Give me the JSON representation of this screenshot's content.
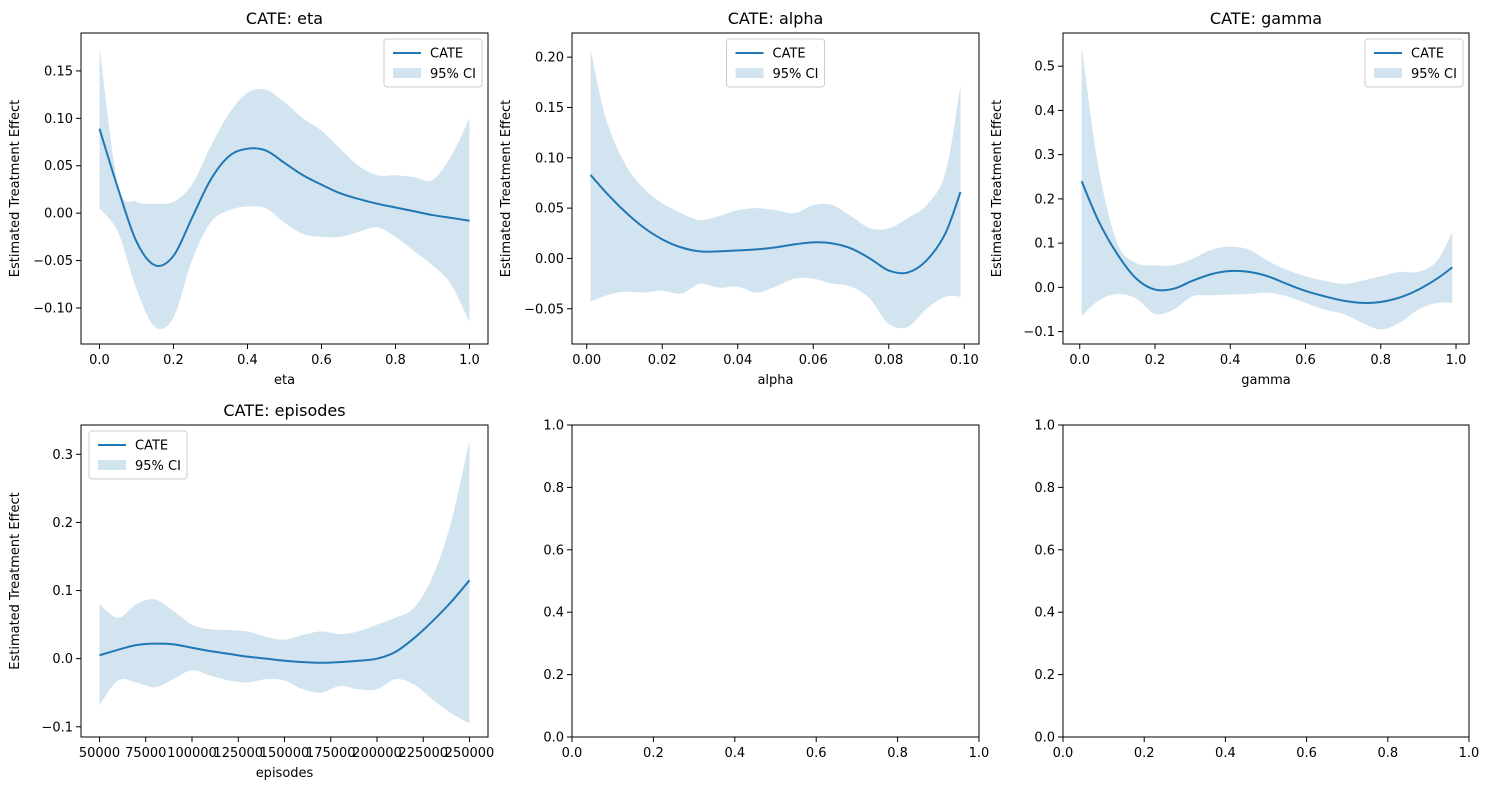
{
  "figure": {
    "background": "#ffffff"
  },
  "colors": {
    "line": "#1f77b4",
    "band": "#1f77b4",
    "band_opacity": 0.2
  },
  "chart_data": [
    {
      "type": "line",
      "title": "CATE: eta",
      "xlabel": "eta",
      "ylabel": "Estimated Treatment Effect",
      "xlim": [
        -0.05,
        1.05
      ],
      "ylim": [
        -0.138,
        0.19
      ],
      "xticks": [
        0.0,
        0.2,
        0.4,
        0.6,
        0.8,
        1.0
      ],
      "xtick_labels": [
        "0.0",
        "0.2",
        "0.4",
        "0.6",
        "0.8",
        "1.0"
      ],
      "yticks": [
        -0.1,
        -0.05,
        0.0,
        0.05,
        0.1,
        0.15
      ],
      "ytick_labels": [
        "−0.10",
        "−0.05",
        "0.00",
        "0.05",
        "0.10",
        "0.15"
      ],
      "legend": {
        "position": "upper right",
        "entries": [
          "CATE",
          "95% CI"
        ]
      },
      "x": [
        0.0,
        0.05,
        0.1,
        0.15,
        0.2,
        0.25,
        0.3,
        0.35,
        0.4,
        0.45,
        0.5,
        0.55,
        0.6,
        0.65,
        0.7,
        0.75,
        0.8,
        0.85,
        0.9,
        0.95,
        1.0
      ],
      "y": [
        0.089,
        0.026,
        -0.03,
        -0.055,
        -0.045,
        -0.005,
        0.035,
        0.06,
        0.068,
        0.066,
        0.053,
        0.04,
        0.03,
        0.021,
        0.015,
        0.01,
        0.006,
        0.002,
        -0.002,
        -0.005,
        -0.008
      ],
      "ci_lower": [
        0.005,
        -0.02,
        -0.08,
        -0.12,
        -0.11,
        -0.05,
        -0.01,
        0.003,
        0.007,
        0.005,
        -0.01,
        -0.022,
        -0.025,
        -0.025,
        -0.02,
        -0.015,
        -0.025,
        -0.04,
        -0.055,
        -0.075,
        -0.115
      ],
      "ci_upper": [
        0.175,
        0.03,
        0.012,
        0.01,
        0.012,
        0.03,
        0.07,
        0.105,
        0.127,
        0.13,
        0.117,
        0.1,
        0.087,
        0.068,
        0.05,
        0.04,
        0.04,
        0.038,
        0.035,
        0.06,
        0.1
      ]
    },
    {
      "type": "line",
      "title": "CATE: alpha",
      "xlabel": "alpha",
      "ylabel": "Estimated Treatment Effect",
      "xlim": [
        -0.0039,
        0.1039
      ],
      "ylim": [
        -0.085,
        0.224
      ],
      "xticks": [
        0.0,
        0.02,
        0.04,
        0.06,
        0.08,
        0.1
      ],
      "xtick_labels": [
        "0.00",
        "0.02",
        "0.04",
        "0.06",
        "0.08",
        "0.10"
      ],
      "yticks": [
        -0.05,
        0.0,
        0.05,
        0.1,
        0.15,
        0.2
      ],
      "ytick_labels": [
        "−0.05",
        "0.00",
        "0.05",
        "0.10",
        "0.15",
        "0.20"
      ],
      "legend": {
        "position": "upper center",
        "entries": [
          "CATE",
          "95% CI"
        ]
      },
      "x": [
        0.001,
        0.005,
        0.01,
        0.015,
        0.02,
        0.025,
        0.03,
        0.035,
        0.04,
        0.045,
        0.05,
        0.055,
        0.06,
        0.065,
        0.07,
        0.075,
        0.08,
        0.085,
        0.09,
        0.095,
        0.099
      ],
      "y": [
        0.083,
        0.066,
        0.047,
        0.031,
        0.019,
        0.011,
        0.007,
        0.007,
        0.008,
        0.009,
        0.011,
        0.014,
        0.016,
        0.015,
        0.01,
        0.0,
        -0.012,
        -0.014,
        -0.002,
        0.025,
        0.066
      ],
      "ci_lower": [
        -0.043,
        -0.037,
        -0.033,
        -0.034,
        -0.032,
        -0.035,
        -0.025,
        -0.029,
        -0.028,
        -0.034,
        -0.028,
        -0.02,
        -0.02,
        -0.025,
        -0.028,
        -0.04,
        -0.065,
        -0.068,
        -0.05,
        -0.038,
        -0.038
      ],
      "ci_upper": [
        0.208,
        0.14,
        0.095,
        0.07,
        0.055,
        0.045,
        0.038,
        0.042,
        0.048,
        0.05,
        0.048,
        0.045,
        0.053,
        0.053,
        0.042,
        0.03,
        0.03,
        0.04,
        0.053,
        0.085,
        0.172
      ]
    },
    {
      "type": "line",
      "title": "CATE: gamma",
      "xlabel": "gamma",
      "ylabel": "Estimated Treatment Effect",
      "xlim": [
        -0.0445,
        1.0345
      ],
      "ylim": [
        -0.128,
        0.575
      ],
      "xticks": [
        0.0,
        0.2,
        0.4,
        0.6,
        0.8,
        1.0
      ],
      "xtick_labels": [
        "0.0",
        "0.2",
        "0.4",
        "0.6",
        "0.8",
        "1.0"
      ],
      "yticks": [
        -0.1,
        0.0,
        0.1,
        0.2,
        0.3,
        0.4,
        0.5
      ],
      "ytick_labels": [
        "−0.1",
        "0.0",
        "0.1",
        "0.2",
        "0.3",
        "0.4",
        "0.5"
      ],
      "legend": {
        "position": "upper right",
        "entries": [
          "CATE",
          "95% CI"
        ]
      },
      "x": [
        0.005,
        0.05,
        0.1,
        0.15,
        0.2,
        0.25,
        0.3,
        0.35,
        0.4,
        0.45,
        0.5,
        0.55,
        0.6,
        0.65,
        0.7,
        0.75,
        0.8,
        0.85,
        0.9,
        0.95,
        0.99
      ],
      "y": [
        0.24,
        0.15,
        0.075,
        0.02,
        -0.005,
        -0.003,
        0.015,
        0.03,
        0.037,
        0.035,
        0.025,
        0.008,
        -0.008,
        -0.02,
        -0.03,
        -0.035,
        -0.033,
        -0.023,
        -0.005,
        0.02,
        0.045
      ],
      "ci_lower": [
        -0.065,
        -0.03,
        -0.015,
        -0.025,
        -0.06,
        -0.05,
        -0.02,
        -0.018,
        -0.016,
        -0.015,
        -0.012,
        -0.02,
        -0.035,
        -0.05,
        -0.06,
        -0.08,
        -0.095,
        -0.08,
        -0.05,
        -0.035,
        -0.035
      ],
      "ci_upper": [
        0.545,
        0.27,
        0.1,
        0.055,
        0.05,
        0.05,
        0.065,
        0.085,
        0.092,
        0.085,
        0.06,
        0.04,
        0.025,
        0.015,
        0.008,
        0.015,
        0.025,
        0.035,
        0.035,
        0.06,
        0.125
      ]
    },
    {
      "type": "line",
      "title": "CATE: episodes",
      "xlabel": "episodes",
      "ylabel": "Estimated Treatment Effect",
      "xlim": [
        40000,
        260000
      ],
      "ylim": [
        -0.115,
        0.343
      ],
      "xticks": [
        50000,
        75000,
        100000,
        125000,
        150000,
        175000,
        200000,
        225000,
        250000
      ],
      "xtick_labels": [
        "50000",
        "75000",
        "100000",
        "125000",
        "150000",
        "175000",
        "200000",
        "225000",
        "250000"
      ],
      "yticks": [
        -0.1,
        0.0,
        0.1,
        0.2,
        0.3
      ],
      "ytick_labels": [
        "−0.1",
        "0.0",
        "0.1",
        "0.2",
        "0.3"
      ],
      "legend": {
        "position": "upper left",
        "entries": [
          "CATE",
          "95% CI"
        ]
      },
      "x": [
        50000,
        60000,
        70000,
        80000,
        90000,
        100000,
        110000,
        120000,
        130000,
        140000,
        150000,
        160000,
        170000,
        180000,
        190000,
        200000,
        210000,
        220000,
        230000,
        240000,
        250000
      ],
      "y": [
        0.005,
        0.013,
        0.02,
        0.022,
        0.021,
        0.016,
        0.011,
        0.007,
        0.003,
        0.0,
        -0.003,
        -0.005,
        -0.006,
        -0.005,
        -0.003,
        0.0,
        0.01,
        0.03,
        0.055,
        0.083,
        0.115
      ],
      "ci_lower": [
        -0.068,
        -0.032,
        -0.035,
        -0.042,
        -0.03,
        -0.017,
        -0.025,
        -0.032,
        -0.035,
        -0.03,
        -0.032,
        -0.045,
        -0.05,
        -0.04,
        -0.045,
        -0.045,
        -0.03,
        -0.038,
        -0.06,
        -0.08,
        -0.095
      ],
      "ci_upper": [
        0.08,
        0.06,
        0.08,
        0.087,
        0.07,
        0.05,
        0.043,
        0.042,
        0.04,
        0.032,
        0.028,
        0.035,
        0.04,
        0.036,
        0.04,
        0.05,
        0.06,
        0.075,
        0.12,
        0.2,
        0.32
      ]
    },
    {
      "type": "line",
      "title": "",
      "xlabel": "",
      "ylabel": "",
      "xlim": [
        0,
        1
      ],
      "ylim": [
        0,
        1
      ],
      "xticks": [
        0.0,
        0.2,
        0.4,
        0.6,
        0.8,
        1.0
      ],
      "xtick_labels": [
        "0.0",
        "0.2",
        "0.4",
        "0.6",
        "0.8",
        "1.0"
      ],
      "yticks": [
        0.0,
        0.2,
        0.4,
        0.6,
        0.8,
        1.0
      ],
      "ytick_labels": [
        "0.0",
        "0.2",
        "0.4",
        "0.6",
        "0.8",
        "1.0"
      ]
    },
    {
      "type": "line",
      "title": "",
      "xlabel": "",
      "ylabel": "",
      "xlim": [
        0,
        1
      ],
      "ylim": [
        0,
        1
      ],
      "xticks": [
        0.0,
        0.2,
        0.4,
        0.6,
        0.8,
        1.0
      ],
      "xtick_labels": [
        "0.0",
        "0.2",
        "0.4",
        "0.6",
        "0.8",
        "1.0"
      ],
      "yticks": [
        0.0,
        0.2,
        0.4,
        0.6,
        0.8,
        1.0
      ],
      "ytick_labels": [
        "0.0",
        "0.2",
        "0.4",
        "0.6",
        "0.8",
        "1.0"
      ]
    }
  ]
}
